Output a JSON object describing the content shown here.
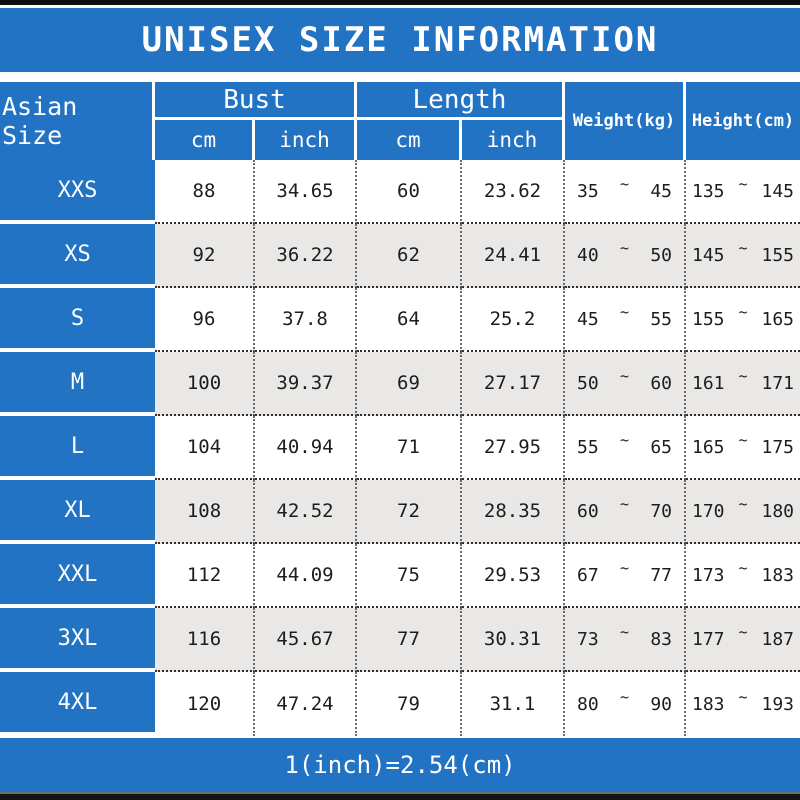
{
  "title": "UNISEX SIZE INFORMATION",
  "symbols": {
    "tilde": "~"
  },
  "colors": {
    "blue": "#2273c4",
    "alt_row": "#e9e8e6",
    "bar": "#0d0d0d",
    "text": "#1d1d1d"
  },
  "header": {
    "asian_size": "Asian Size",
    "bust": "Bust",
    "length": "Length",
    "cm": "cm",
    "inch": "inch",
    "weight": "Weight(kg)",
    "height": "Height(cm)"
  },
  "footer": {
    "note": "1(inch)=2.54(cm)"
  },
  "chart_data": {
    "type": "table",
    "title": "UNISEX SIZE INFORMATION",
    "columns": [
      "Asian Size",
      "Bust cm",
      "Bust inch",
      "Length cm",
      "Length inch",
      "Weight(kg)",
      "Height(cm)"
    ],
    "rows": [
      {
        "size": "XXS",
        "bust_cm": 88,
        "bust_inch": 34.65,
        "length_cm": 60,
        "length_inch": 23.62,
        "weight": [
          35,
          45
        ],
        "height": [
          135,
          145
        ]
      },
      {
        "size": "XS",
        "bust_cm": 92,
        "bust_inch": 36.22,
        "length_cm": 62,
        "length_inch": 24.41,
        "weight": [
          40,
          50
        ],
        "height": [
          145,
          155
        ]
      },
      {
        "size": "S",
        "bust_cm": 96,
        "bust_inch": 37.8,
        "length_cm": 64,
        "length_inch": 25.2,
        "weight": [
          45,
          55
        ],
        "height": [
          155,
          165
        ]
      },
      {
        "size": "M",
        "bust_cm": 100,
        "bust_inch": 39.37,
        "length_cm": 69,
        "length_inch": 27.17,
        "weight": [
          50,
          60
        ],
        "height": [
          161,
          171
        ]
      },
      {
        "size": "L",
        "bust_cm": 104,
        "bust_inch": 40.94,
        "length_cm": 71,
        "length_inch": 27.95,
        "weight": [
          55,
          65
        ],
        "height": [
          165,
          175
        ]
      },
      {
        "size": "XL",
        "bust_cm": 108,
        "bust_inch": 42.52,
        "length_cm": 72,
        "length_inch": 28.35,
        "weight": [
          60,
          70
        ],
        "height": [
          170,
          180
        ]
      },
      {
        "size": "XXL",
        "bust_cm": 112,
        "bust_inch": 44.09,
        "length_cm": 75,
        "length_inch": 29.53,
        "weight": [
          67,
          77
        ],
        "height": [
          173,
          183
        ]
      },
      {
        "size": "3XL",
        "bust_cm": 116,
        "bust_inch": 45.67,
        "length_cm": 77,
        "length_inch": 30.31,
        "weight": [
          73,
          83
        ],
        "height": [
          177,
          187
        ]
      },
      {
        "size": "4XL",
        "bust_cm": 120,
        "bust_inch": 47.24,
        "length_cm": 79,
        "length_inch": 31.1,
        "weight": [
          80,
          90
        ],
        "height": [
          183,
          193
        ]
      }
    ],
    "footnote": "1(inch)=2.54(cm)"
  }
}
